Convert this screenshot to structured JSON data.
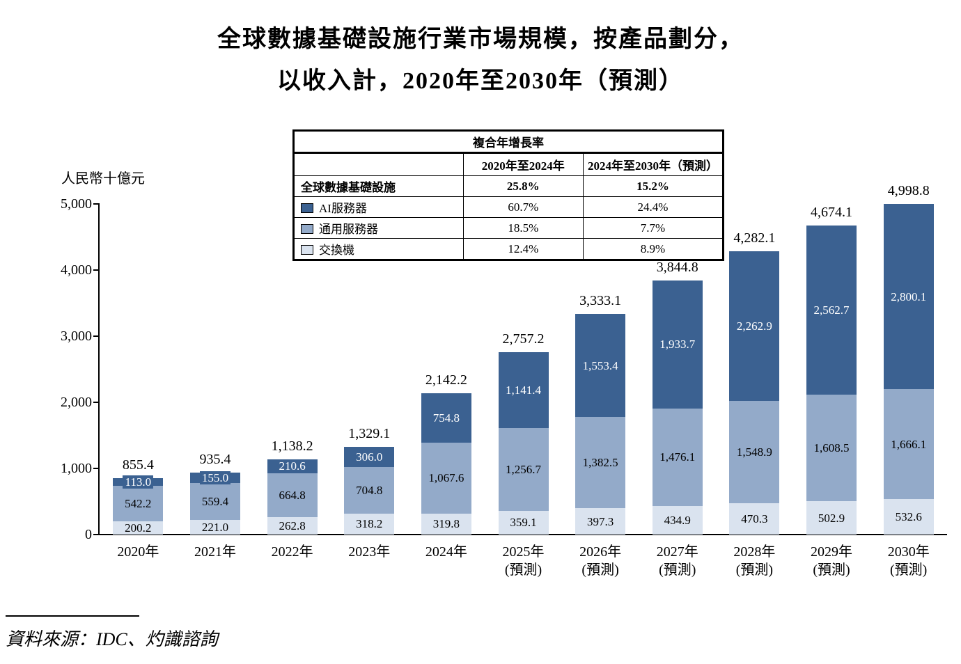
{
  "title": {
    "line1": "全球數據基礎設施行業市場規模，按產品劃分，",
    "line2": "以收入計，2020年至2030年（預測）"
  },
  "y_axis_title": "人民幣十億元",
  "source": "資料來源：IDC、灼識諮詢",
  "colors": {
    "ai_server": "#3b6191",
    "general_server": "#93aac9",
    "switch": "#dae3ef"
  },
  "cagr_table": {
    "title": "複合年增長率",
    "columns": [
      "2020年至2024年",
      "2024年至2030年（預測）"
    ],
    "rows": [
      {
        "label": "全球數據基礎設施",
        "values": [
          "25.8%",
          "15.2%"
        ]
      },
      {
        "label": "AI服務器",
        "values": [
          "60.7%",
          "24.4%"
        ]
      },
      {
        "label": "通用服務器",
        "values": [
          "18.5%",
          "7.7%"
        ]
      },
      {
        "label": "交換機",
        "values": [
          "12.4%",
          "8.9%"
        ]
      }
    ]
  },
  "chart_data": {
    "type": "bar",
    "stacked": true,
    "title": "全球數據基礎設施行業市場規模，按產品劃分，以收入計，2020年至2030年（預測）",
    "ylabel": "人民幣十億元",
    "ylim": [
      0,
      5000
    ],
    "yticks": [
      0,
      1000,
      2000,
      3000,
      4000,
      5000
    ],
    "grid": false,
    "legend_position": "table-top",
    "categories": [
      {
        "label": "2020年",
        "sublabel": ""
      },
      {
        "label": "2021年",
        "sublabel": ""
      },
      {
        "label": "2022年",
        "sublabel": ""
      },
      {
        "label": "2023年",
        "sublabel": ""
      },
      {
        "label": "2024年",
        "sublabel": ""
      },
      {
        "label": "2025年",
        "sublabel": "(預測)"
      },
      {
        "label": "2026年",
        "sublabel": "(預測)"
      },
      {
        "label": "2027年",
        "sublabel": "(預測)"
      },
      {
        "label": "2028年",
        "sublabel": "(預測)"
      },
      {
        "label": "2029年",
        "sublabel": "(預測)"
      },
      {
        "label": "2030年",
        "sublabel": "(預測)"
      }
    ],
    "series": [
      {
        "name": "交換機",
        "color_key": "switch",
        "label_color": "#000000",
        "values": [
          200.2,
          221.0,
          262.8,
          318.2,
          319.8,
          359.1,
          397.3,
          434.9,
          470.3,
          502.9,
          532.6
        ]
      },
      {
        "name": "通用服務器",
        "color_key": "general_server",
        "label_color": "#000000",
        "values": [
          542.2,
          559.4,
          664.8,
          704.8,
          1067.6,
          1256.7,
          1382.5,
          1476.1,
          1548.9,
          1608.5,
          1666.1
        ]
      },
      {
        "name": "AI服務器",
        "color_key": "ai_server",
        "label_color": "#ffffff",
        "values": [
          113.0,
          155.0,
          210.6,
          306.0,
          754.8,
          1141.4,
          1553.4,
          1933.7,
          2262.9,
          2562.7,
          2800.1
        ]
      }
    ],
    "totals": [
      855.4,
      935.4,
      1138.2,
      1329.1,
      2142.2,
      2757.2,
      3333.1,
      3844.8,
      4282.1,
      4674.1,
      4998.8
    ]
  }
}
